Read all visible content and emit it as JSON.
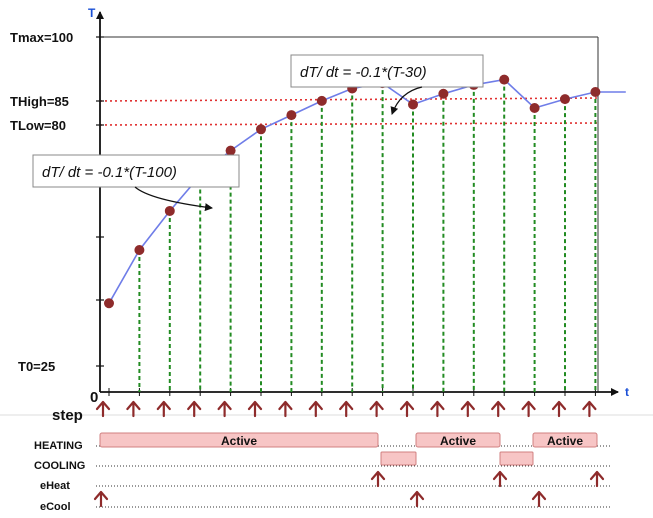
{
  "axes": {
    "y_letter": "T",
    "x_letter": "t",
    "origin_label": "0",
    "y_labels": {
      "tmax": "Tmax=100",
      "thigh": "THigh=85",
      "tlow": "TLow=80",
      "t0": "T0=25"
    }
  },
  "equations": {
    "heating": "dT/ dt = -0.1*(T-100)",
    "cooling": "dT/ dt = -0.1*(T-30)"
  },
  "timeline": {
    "step_label": "step",
    "rows": [
      "HEATING",
      "COOLING",
      "eHeat",
      "eCool"
    ],
    "active_label": "Active"
  },
  "chart_data": {
    "type": "line",
    "ylim": [
      0,
      100
    ],
    "reference_lines": [
      {
        "label": "THigh=85",
        "value": 85,
        "color": "#e03131"
      },
      {
        "label": "TLow=80",
        "value": 80,
        "color": "#e03131"
      }
    ],
    "x": [
      0,
      1,
      2,
      3,
      4,
      5,
      6,
      7,
      8,
      9,
      10,
      11,
      12,
      13,
      14,
      15,
      16,
      17
    ],
    "values": [
      25,
      40,
      51,
      61,
      68,
      74,
      78,
      82,
      85.5,
      87,
      81,
      84,
      86.5,
      88,
      80,
      82.5,
      84.5,
      84.5
    ],
    "marker_steps": [
      0,
      1,
      2,
      3,
      4,
      5,
      6,
      7,
      8,
      9,
      10,
      11,
      12,
      13,
      14,
      15,
      16
    ],
    "colors": {
      "line": "#6f7de8",
      "marker": "#8e2b2b",
      "stem": "#228b22",
      "arrow": "#8e2b2b",
      "bar_fill": "#f7c5c5",
      "bar_stroke": "#d08080"
    }
  }
}
